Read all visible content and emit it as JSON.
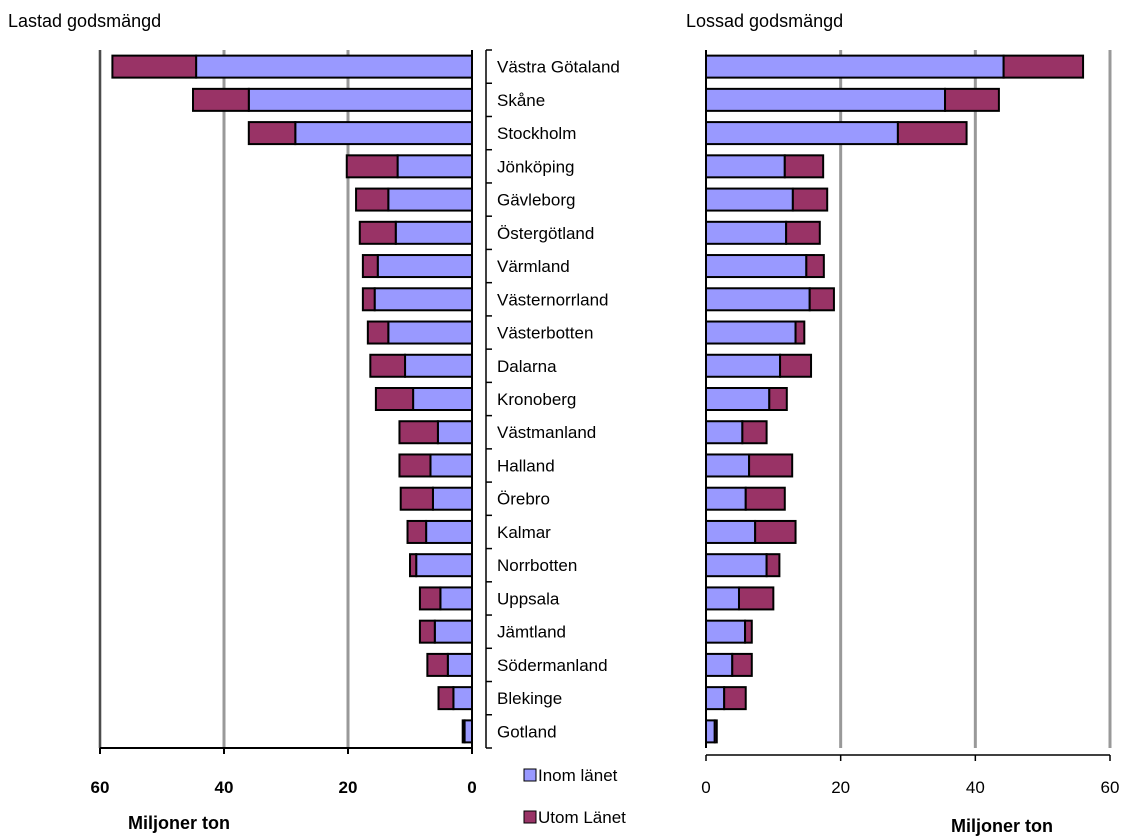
{
  "colors": {
    "inom": "#9999ff",
    "utom": "#993366",
    "grid": "#999999",
    "bar_stroke": "#000000"
  },
  "chart_data": [
    {
      "type": "bar",
      "orientation": "horizontal",
      "stacked": true,
      "reversed_x": true,
      "title": "Lastad godsmängd",
      "xlabel": "Miljoner ton",
      "xlim": [
        0,
        60
      ],
      "xticks": [
        "60",
        "40",
        "20",
        "0"
      ],
      "grid": true,
      "categories": [
        "Västra Götaland",
        "Skåne",
        "Stockholm",
        "Jönköping",
        "Gävleborg",
        "Östergötland",
        "Värmland",
        "Västernorrland",
        "Västerbotten",
        "Dalarna",
        "Kronoberg",
        "Västmanland",
        "Halland",
        "Örebro",
        "Kalmar",
        "Norrbotten",
        "Uppsala",
        "Jämtland",
        "Södermanland",
        "Blekinge",
        "Gotland"
      ],
      "series": [
        {
          "name": "Inom länet",
          "values": [
            44.5,
            36,
            28.5,
            12,
            13.5,
            12.3,
            15.2,
            15.7,
            13.5,
            10.8,
            9.5,
            5.5,
            6.7,
            6.3,
            7.4,
            9,
            5.1,
            6,
            3.9,
            3,
            1.2
          ]
        },
        {
          "name": "Utom Länet",
          "values": [
            13.5,
            9,
            7.5,
            8.2,
            5.2,
            5.8,
            2.4,
            1.9,
            3.3,
            5.6,
            6,
            6.2,
            5,
            5.2,
            3,
            1,
            3.3,
            2.4,
            3.3,
            2.4,
            0.3
          ]
        }
      ]
    },
    {
      "type": "bar",
      "orientation": "horizontal",
      "stacked": true,
      "title": "Lossad godsmängd",
      "xlabel": "Miljoner ton",
      "xlim": [
        0,
        60
      ],
      "xticks": [
        "0",
        "20",
        "40",
        "60"
      ],
      "grid": true,
      "categories": [
        "Västra Götaland",
        "Skåne",
        "Stockholm",
        "Jönköping",
        "Gävleborg",
        "Östergötland",
        "Värmland",
        "Västernorrland",
        "Västerbotten",
        "Dalarna",
        "Kronoberg",
        "Västmanland",
        "Halland",
        "Örebro",
        "Kalmar",
        "Norrbotten",
        "Uppsala",
        "Jämtland",
        "Södermanland",
        "Blekinge",
        "Gotland"
      ],
      "series": [
        {
          "name": "Inom länet",
          "values": [
            44.2,
            35.5,
            28.5,
            11.7,
            12.9,
            11.9,
            14.9,
            15.4,
            13.3,
            11,
            9.4,
            5.4,
            6.4,
            5.9,
            7.3,
            9,
            4.9,
            5.8,
            3.9,
            2.7,
            1.3
          ]
        },
        {
          "name": "Utom Länet",
          "values": [
            11.8,
            8,
            10.2,
            5.7,
            5.1,
            5,
            2.6,
            3.6,
            1.3,
            4.6,
            2.6,
            3.6,
            6.4,
            5.8,
            6,
            1.9,
            5.1,
            1,
            2.9,
            3.2,
            0.3
          ]
        }
      ]
    }
  ],
  "legend": [
    {
      "name": "Inom länet",
      "label": "Inom länet"
    },
    {
      "name": "Utom Länet",
      "label": "Utom Länet"
    }
  ]
}
